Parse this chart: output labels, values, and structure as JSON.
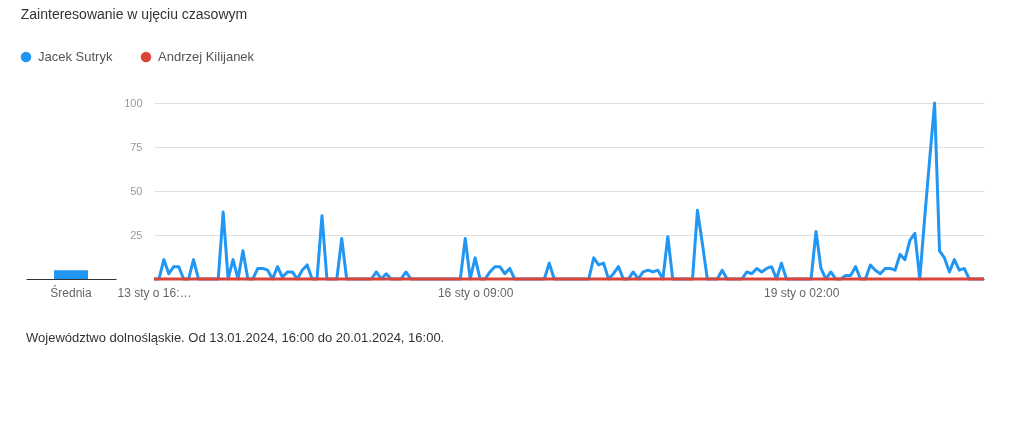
{
  "chart_data": [
    {
      "type": "bar",
      "categories": [
        "Średnia"
      ],
      "series": [
        {
          "color": "#2196f3",
          "values": [
            5
          ]
        }
      ],
      "ylim": [
        0,
        100
      ],
      "tick_labels": "x"
    },
    {
      "type": "line",
      "title": "Zainteresowanie w ujęciu czasowym",
      "annotations": [
        "Województwo dolnośląskie. Od 13.01.2024, 16:00 do 20.01.2024, 16:00."
      ],
      "categories": [
        "13 sty o 16:…",
        null,
        null,
        null,
        null,
        null,
        null,
        null,
        null,
        null,
        null,
        null,
        null,
        null,
        null,
        null,
        null,
        null,
        null,
        null,
        null,
        null,
        null,
        null,
        null,
        null,
        null,
        null,
        null,
        null,
        null,
        null,
        null,
        null,
        null,
        null,
        null,
        null,
        null,
        null,
        null,
        null,
        null,
        null,
        null,
        null,
        null,
        null,
        null,
        null,
        null,
        null,
        null,
        null,
        null,
        null,
        null,
        null,
        null,
        null,
        null,
        null,
        null,
        null,
        null,
        "16 sty o 09:00",
        null,
        null,
        null,
        null,
        null,
        null,
        null,
        null,
        null,
        null,
        null,
        null,
        null,
        null,
        null,
        null,
        null,
        null,
        null,
        null,
        null,
        null,
        null,
        null,
        null,
        null,
        null,
        null,
        null,
        null,
        null,
        null,
        null,
        null,
        null,
        null,
        null,
        null,
        null,
        null,
        null,
        null,
        null,
        null,
        null,
        null,
        null,
        null,
        null,
        null,
        null,
        null,
        null,
        null,
        null,
        null,
        null,
        null,
        null,
        null,
        null,
        null,
        null,
        null,
        null,
        "19 sty o 02:00",
        null,
        null,
        null,
        null,
        null,
        null,
        null,
        null,
        null,
        null,
        null,
        null,
        null,
        null,
        null,
        null,
        null,
        null,
        null,
        null,
        null,
        null,
        null,
        null,
        null,
        null,
        null,
        null,
        null,
        null,
        null,
        null,
        null,
        null,
        null,
        null,
        null
      ],
      "series": [
        {
          "name": "Jacek Sutryk",
          "color": "#2196f3",
          "values": [
            0,
            0,
            11,
            3,
            7,
            7,
            0,
            0,
            11,
            0,
            0,
            0,
            0,
            0,
            38,
            0,
            11,
            0,
            16,
            0,
            0,
            6,
            6,
            5,
            0,
            7,
            1,
            4,
            4,
            0,
            5,
            8,
            0,
            0,
            36,
            0,
            0,
            0,
            23,
            0,
            0,
            0,
            0,
            0,
            0,
            4,
            0,
            3,
            0,
            0,
            0,
            4,
            0,
            0,
            0,
            0,
            0,
            0,
            0,
            0,
            0,
            0,
            0,
            23,
            0,
            12,
            0,
            0,
            4,
            7,
            7,
            3,
            6,
            0,
            0,
            0,
            0,
            0,
            0,
            0,
            9,
            0,
            0,
            0,
            0,
            0,
            0,
            0,
            0,
            12,
            8,
            9,
            0,
            3,
            7,
            0,
            0,
            4,
            0,
            4,
            5,
            4,
            5,
            0,
            24,
            0,
            0,
            0,
            0,
            0,
            39,
            20,
            0,
            0,
            0,
            5,
            0,
            0,
            0,
            0,
            4,
            3,
            6,
            4,
            6,
            7,
            0,
            9,
            0,
            0,
            0,
            0,
            0,
            0,
            27,
            6,
            0,
            4,
            0,
            0,
            2,
            2,
            7,
            0,
            0,
            8,
            5,
            3,
            6,
            6,
            5,
            14,
            11,
            22,
            26,
            0,
            35,
            68,
            100,
            16,
            12,
            4,
            11,
            5,
            6,
            0,
            0,
            0,
            0
          ]
        },
        {
          "name": "Andrzej Kilijanek",
          "color": "#db4437",
          "values": [
            0,
            0,
            0,
            0,
            0,
            0,
            0,
            0,
            0,
            0,
            0,
            0,
            0,
            0,
            0,
            0,
            0,
            0,
            0,
            0,
            0,
            0,
            0,
            0,
            0,
            0,
            0,
            0,
            0,
            0,
            0,
            0,
            0,
            0,
            0,
            0,
            0,
            0,
            0,
            0,
            0,
            0,
            0,
            0,
            0,
            0,
            0,
            0,
            0,
            0,
            0,
            0,
            0,
            0,
            0,
            0,
            0,
            0,
            0,
            0,
            0,
            0,
            0,
            0,
            0,
            0,
            0,
            0,
            0,
            0,
            0,
            0,
            0,
            0,
            0,
            0,
            0,
            0,
            0,
            0,
            0,
            0,
            0,
            0,
            0,
            0,
            0,
            0,
            0,
            0,
            0,
            0,
            0,
            0,
            0,
            0,
            0,
            0,
            0,
            0,
            0,
            0,
            0,
            0,
            0,
            0,
            0,
            0,
            0,
            0,
            0,
            0,
            0,
            0,
            0,
            0,
            0,
            0,
            0,
            0,
            0,
            0,
            0,
            0,
            0,
            0,
            0,
            0,
            0,
            0,
            0,
            0,
            0,
            0,
            0,
            0,
            0,
            0,
            0,
            0,
            0,
            0,
            0,
            0,
            0,
            0,
            0,
            0,
            0,
            0,
            0,
            0,
            0,
            0,
            0,
            0,
            0,
            0,
            0,
            0,
            0,
            0,
            0,
            0,
            0,
            0,
            0,
            0,
            0
          ]
        }
      ],
      "ylim": [
        0,
        100
      ],
      "yticks": [
        {
          "value": 0,
          "label": null
        },
        25,
        50,
        75,
        100
      ],
      "grid": "y",
      "legend": "top left",
      "marker": "none",
      "line_style": "solid"
    }
  ]
}
